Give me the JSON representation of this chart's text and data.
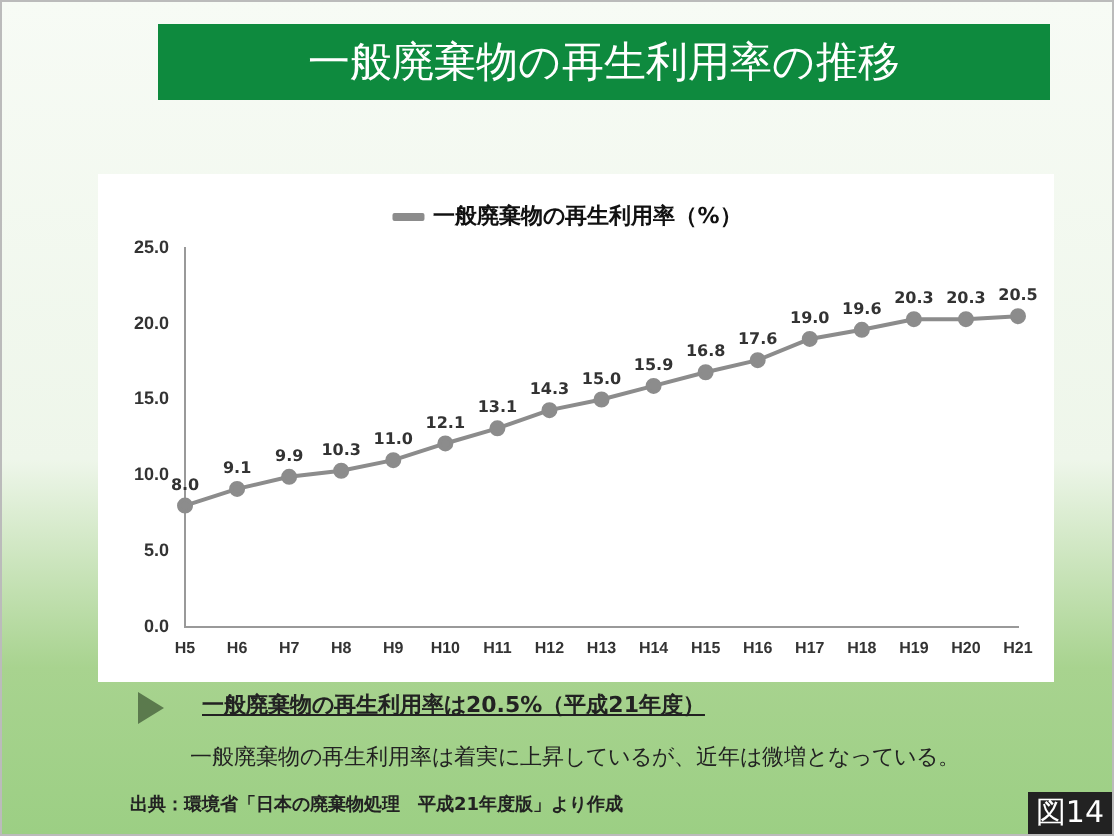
{
  "chart_data": {
    "type": "line",
    "title": "一般廃棄物の再生利用率の推移",
    "categories": [
      "H5",
      "H6",
      "H7",
      "H8",
      "H9",
      "H10",
      "H11",
      "H12",
      "H13",
      "H14",
      "H15",
      "H16",
      "H17",
      "H18",
      "H19",
      "H20",
      "H21"
    ],
    "series": [
      {
        "name": "一般廃棄物の再生利用率（%）",
        "color": "#8c8c8c",
        "values": [
          8.0,
          9.1,
          9.9,
          10.3,
          11.0,
          12.1,
          13.1,
          14.3,
          15.0,
          15.9,
          16.8,
          17.6,
          19.0,
          19.6,
          20.3,
          20.3,
          20.5
        ],
        "value_labels": [
          "8.0",
          "9.1",
          "9.9",
          "10.3",
          "11.0",
          "12.1",
          "13.1",
          "14.3",
          "15.0",
          "15.9",
          "16.8",
          "17.6",
          "19.0",
          "19.6",
          "20.3",
          "20.3",
          "20.5"
        ]
      }
    ],
    "ylim": [
      0,
      25
    ],
    "yticks": [
      {
        "value": 0,
        "label": "0.0"
      },
      {
        "value": 5,
        "label": "5.0"
      },
      {
        "value": 10,
        "label": "10.0"
      },
      {
        "value": 15,
        "label": "15.0"
      },
      {
        "value": 20,
        "label": "20.0"
      },
      {
        "value": 25,
        "label": "25.0"
      }
    ],
    "grid": false,
    "legend": "top",
    "marker": "circle",
    "line_style": "solid",
    "annotations": [
      "一般廃棄物の再生利用率は20.5%（平成21年度）",
      "一般廃棄物の再生利用率は着実に上昇しているが、近年は微増となっている。",
      "出典：環境省「日本の廃棄物処理　平成21年度版」より作成",
      "図14"
    ]
  }
}
